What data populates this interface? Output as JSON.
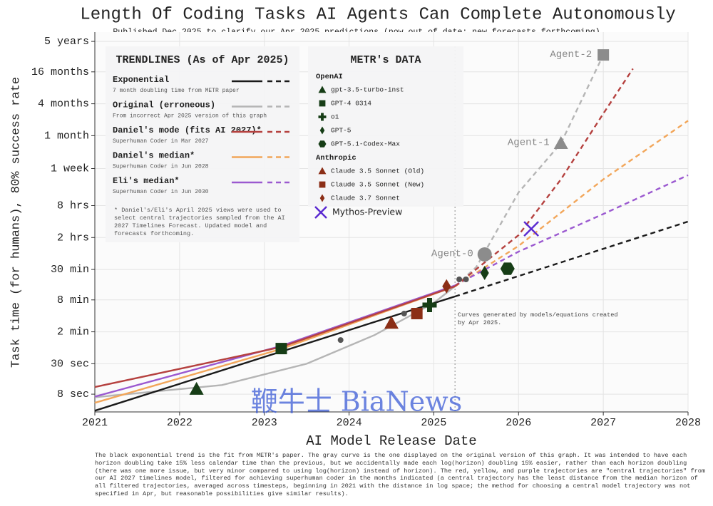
{
  "chart_data": {
    "type": "line",
    "title": "Length Of Coding Tasks AI Agents Can Complete Autonomously",
    "subtitle": "Published Dec 2025 to clarify our Apr 2025 predictions (now out of date; new forecasts forthcoming)",
    "xlabel": "AI Model Release Date",
    "ylabel": "Task time (for humans), 80% success rate",
    "xlim": [
      2021,
      2028
    ],
    "xticks": [
      2021,
      2022,
      2023,
      2024,
      2025,
      2026,
      2027,
      2028
    ],
    "ylim": [
      3.7,
      54000000
    ],
    "log_y": true,
    "grid": true,
    "yticks": [
      {
        "value": 8,
        "label": "8 sec"
      },
      {
        "value": 30,
        "label": "30 sec"
      },
      {
        "value": 120,
        "label": "2 min"
      },
      {
        "value": 480,
        "label": "8 min"
      },
      {
        "value": 1800,
        "label": "30 min"
      },
      {
        "value": 7200,
        "label": "2 hrs"
      },
      {
        "value": 28800,
        "label": "8 hrs"
      },
      {
        "value": 144000,
        "label": "1 week"
      },
      {
        "value": 600000,
        "label": "1 month"
      },
      {
        "value": 2400000,
        "label": "4 months"
      },
      {
        "value": 9600000,
        "label": "16 months"
      },
      {
        "value": 36000000,
        "label": "5 years"
      }
    ],
    "cutoff_x": 2025.25,
    "cutoff_note": "Curves generated by models/equations created by Apr 2025.",
    "trend_title": "TRENDLINES (As of Apr 2025)",
    "trendlines": [
      {
        "name": "Exponential",
        "note": "7 month doubling time from METR paper",
        "color": "#1a1a1a",
        "x": [
          2021,
          2025.25,
          2028
        ],
        "values": [
          3.9,
          557,
          14400
        ]
      },
      {
        "name": "Original (erroneous)",
        "note": "From incorrect Apr 2025 version of this graph",
        "color": "#b5b5b5",
        "x": [
          2021,
          2022.5,
          2023.5,
          2024.3,
          2025,
          2025.25,
          2025.5,
          2026,
          2026.5,
          2027
        ],
        "values": [
          7,
          11.9,
          30,
          104,
          421,
          864,
          1993,
          51000,
          432000,
          20000000
        ]
      },
      {
        "name": "Daniel's mode (fits AI 2027)*",
        "note": "Superhuman Coder in Mar 2027",
        "color": "#b5413f",
        "x": [
          2021,
          2023.2,
          2025.25,
          2026,
          2026.5,
          2027,
          2027.35
        ],
        "values": [
          10.9,
          62,
          864,
          8000,
          90000,
          1560000,
          11000000
        ]
      },
      {
        "name": "Daniel's median*",
        "note": "Superhuman Coder in Jun 2028",
        "color": "#f2a65a",
        "x": [
          2021,
          2023.2,
          2025.25,
          2026,
          2027,
          2028
        ],
        "values": [
          5.5,
          57,
          864,
          5000,
          90000,
          1150000
        ]
      },
      {
        "name": "Eli's median*",
        "note": "Superhuman Coder in Jun 2030",
        "color": "#9b59d0",
        "x": [
          2021,
          2023.2,
          2025.25,
          2026,
          2027,
          2028
        ],
        "values": [
          7.2,
          65,
          900,
          3900,
          20000,
          108000
        ]
      }
    ],
    "trend_footnote": "* Daniel's/Eli's April 2025 views were used to select central trajectories sampled from the AI 2027 Timelines Forecast. Updated model and forecasts forthcoming.",
    "data_title": "METR's DATA",
    "groups": [
      "OpenAI",
      "Anthropic"
    ],
    "models": [
      {
        "name": "gpt-3.5-turbo-inst",
        "group": 0,
        "marker": "triangle",
        "color": "#163d16",
        "x": 2022.2,
        "y": 10
      },
      {
        "name": "GPT-4 0314",
        "group": 0,
        "marker": "square",
        "color": "#163d16",
        "x": 2023.2,
        "y": 58
      },
      {
        "name": "o1",
        "group": 0,
        "marker": "plus",
        "color": "#163d16",
        "x": 2024.95,
        "y": 384
      },
      {
        "name": "GPT-5",
        "group": 0,
        "marker": "diamond",
        "color": "#163d16",
        "x": 2025.6,
        "y": 1545
      },
      {
        "name": "GPT-5.1-Codex-Max",
        "group": 0,
        "marker": "hexagon",
        "color": "#163d16",
        "x": 2025.87,
        "y": 1860
      },
      {
        "name": "Claude 3.5 Sonnet (Old)",
        "group": 1,
        "marker": "triangle",
        "color": "#8b2e16",
        "x": 2024.5,
        "y": 176
      },
      {
        "name": "Claude 3.5 Sonnet (New)",
        "group": 1,
        "marker": "square",
        "color": "#8b2e16",
        "x": 2024.8,
        "y": 265
      },
      {
        "name": "Claude 3.7 Sonnet",
        "group": 1,
        "marker": "diamond",
        "color": "#8b2e16",
        "x": 2025.15,
        "y": 864
      },
      {
        "name": "Mythos-Preview",
        "marker": "x",
        "color": "#5b2bd1",
        "x": 2026.15,
        "y": 10500
      }
    ],
    "other_points": {
      "x": [
        2023.9,
        2024.65,
        2025.3,
        2025.38
      ],
      "values": [
        84,
        265,
        1170,
        1170
      ]
    },
    "agents": [
      {
        "name": "Agent-0",
        "marker": "circle",
        "color": "#8c8c8c",
        "x": 2025.6,
        "y": 3460
      },
      {
        "name": "Agent-1",
        "marker": "triangle",
        "color": "#8c8c8c",
        "x": 2026.5,
        "y": 432000
      },
      {
        "name": "Agent-2",
        "marker": "square",
        "color": "#8c8c8c",
        "x": 2027.0,
        "y": 20000000
      }
    ],
    "watermark": "鞭牛士 BiaNews",
    "caption": "The black exponential trend is the fit from METR's paper. The gray curve is the one displayed on the original version of this graph. It was intended to have each horizon doubling take 15% less calendar time than the previous, but we accidentally made each log(horizon) doubling 15% easier, rather than each horizon doubling (there was one more issue, but very minor compared to using log(horizon) instead of horizon). The red, yellow, and purple trajectories are \"central trajectories\" from our AI 2027 timelines model, filtered for achieving superhuman coder in the months indicated (a central trajectory has the least distance from the median horizon of all filtered trajectories, averaged across timesteps, beginning in 2021 with the distance in log space; the method for choosing a central model trajectory was not specified in Apr, but reasonable possibilities give similar results)."
  }
}
